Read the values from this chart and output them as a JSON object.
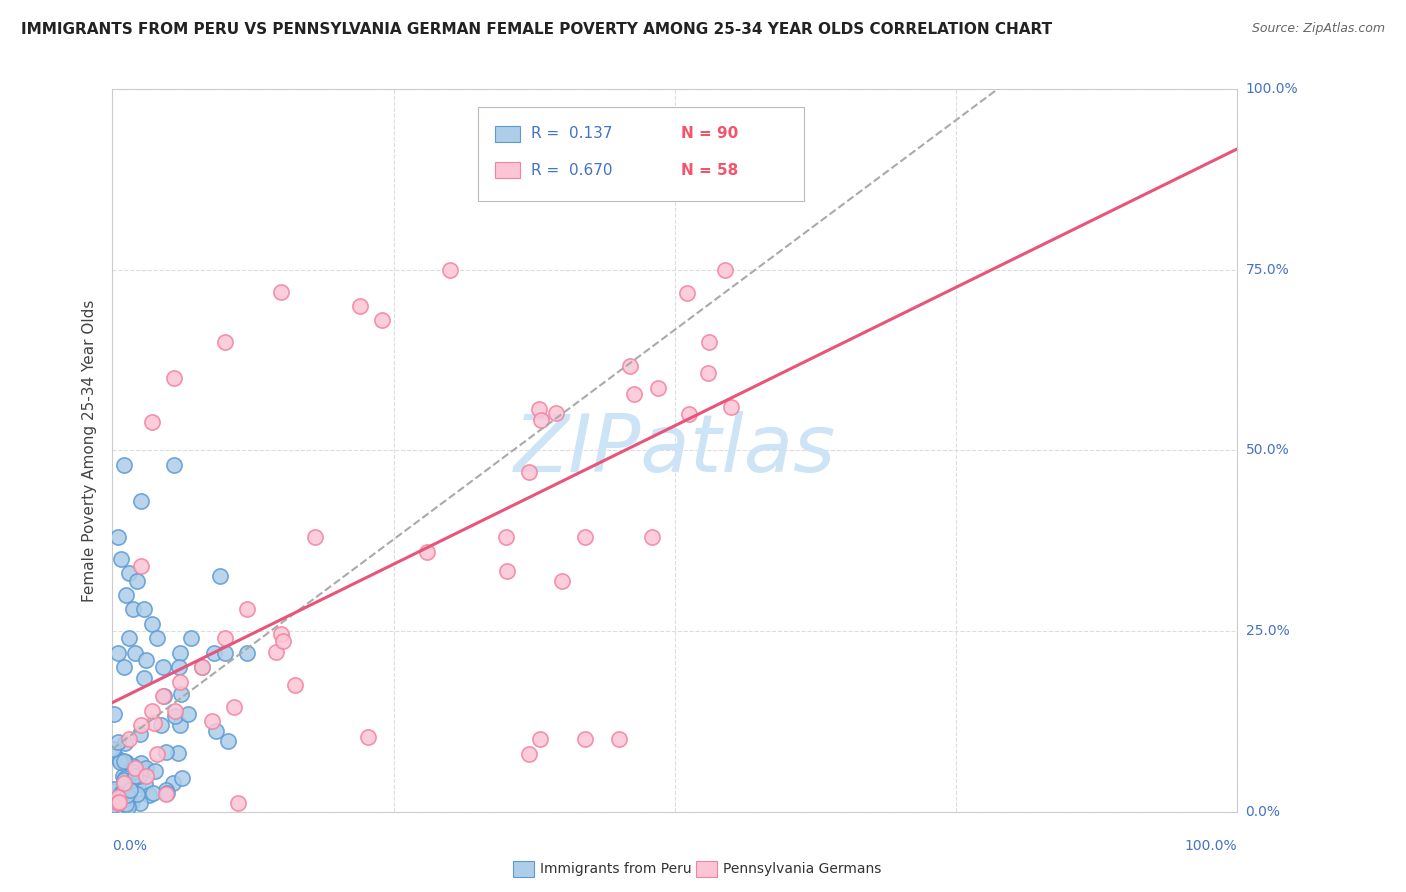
{
  "title": "IMMIGRANTS FROM PERU VS PENNSYLVANIA GERMAN FEMALE POVERTY AMONG 25-34 YEAR OLDS CORRELATION CHART",
  "source": "Source: ZipAtlas.com",
  "ylabel": "Female Poverty Among 25-34 Year Olds",
  "legend_entry1_r": "R =  0.137",
  "legend_entry1_n": "N = 90",
  "legend_entry2_r": "R =  0.670",
  "legend_entry2_n": "N = 58",
  "legend_label1": "Immigrants from Peru",
  "legend_label2": "Pennsylvania Germans",
  "R1": 0.137,
  "N1": 90,
  "R2": 0.67,
  "N2": 58,
  "color1_face": "#aecde8",
  "color1_edge": "#5b9bd5",
  "color2_face": "#fcc5d5",
  "color2_edge": "#f4829e",
  "trendline1_color": "#aaaaaa",
  "trendline2_color": "#e8547a",
  "watermark_color": "#cce4f5",
  "background_color": "#ffffff",
  "grid_color": "#dddddd",
  "title_color": "#222222",
  "source_color": "#666666",
  "ylabel_color": "#444444",
  "tick_label_color": "#4472c4",
  "legend_r_color": "#4472c4",
  "legend_n_color": "#f4546a",
  "title_fontsize": 11,
  "figsize": [
    14.06,
    8.92
  ],
  "dpi": 100
}
